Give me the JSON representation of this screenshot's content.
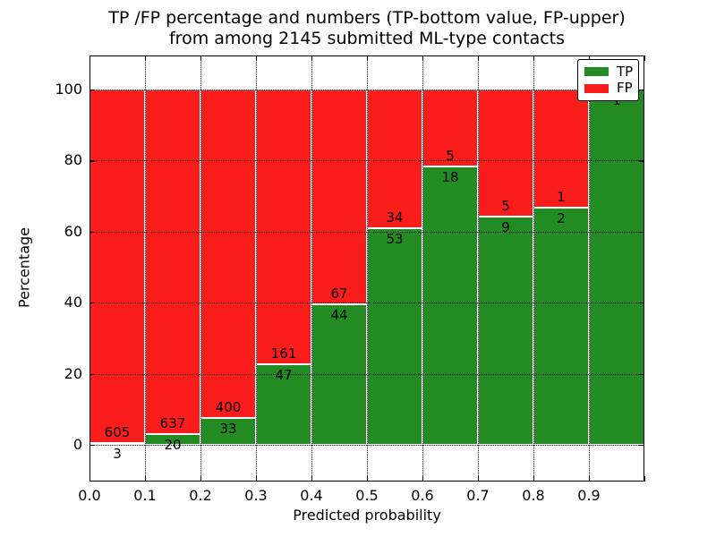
{
  "title": {
    "line1": "TP /FP percentage and numbers (TP-bottom value, FP-upper)",
    "line2": "from among 2145 submitted ML-type contacts"
  },
  "axes": {
    "xlabel": "Predicted probability",
    "ylabel": "Percentage",
    "x_tick_labels": [
      "0.0",
      "0.1",
      "0.2",
      "0.3",
      "0.4",
      "0.5",
      "0.6",
      "0.7",
      "0.8",
      "0.9"
    ],
    "y_tick_labels": [
      "0",
      "20",
      "40",
      "60",
      "80",
      "100"
    ]
  },
  "legend": {
    "position": "upper right",
    "entries": [
      {
        "label": "TP",
        "color": "#228b22"
      },
      {
        "label": "FP",
        "color": "#fb1c1c"
      }
    ]
  },
  "chart_data": {
    "type": "bar",
    "stacked": true,
    "normalized": "percent_of_bin_total",
    "title": "TP /FP percentage and numbers (TP-bottom value, FP-upper) from among 2145 submitted ML-type contacts",
    "xlabel": "Predicted probability",
    "ylabel": "Percentage",
    "total_contacts": 2145,
    "bin_width": 0.1,
    "bin_starts": [
      0.0,
      0.1,
      0.2,
      0.3,
      0.4,
      0.5,
      0.6,
      0.7,
      0.8,
      0.9
    ],
    "series": [
      {
        "name": "TP",
        "color": "#228b22",
        "counts": [
          3,
          20,
          33,
          47,
          44,
          53,
          18,
          9,
          2,
          1
        ]
      },
      {
        "name": "FP",
        "color": "#fb1c1c",
        "counts": [
          605,
          637,
          400,
          161,
          67,
          34,
          5,
          5,
          1,
          0
        ]
      }
    ],
    "tp_percent_per_bin": [
      0.49,
      3.04,
      7.62,
      22.6,
      39.64,
      60.92,
      78.26,
      64.29,
      66.67,
      100.0
    ],
    "xlim": [
      0.0,
      1.0
    ],
    "ylim_display": [
      -10.3,
      109.6
    ],
    "y_ticks": [
      0,
      20,
      40,
      60,
      80,
      100
    ],
    "x_ticks": [
      0.0,
      0.1,
      0.2,
      0.3,
      0.4,
      0.5,
      0.6,
      0.7,
      0.8,
      0.9
    ],
    "grid": "dotted, both axes, drawn above bars",
    "legend_position": "upper right"
  }
}
